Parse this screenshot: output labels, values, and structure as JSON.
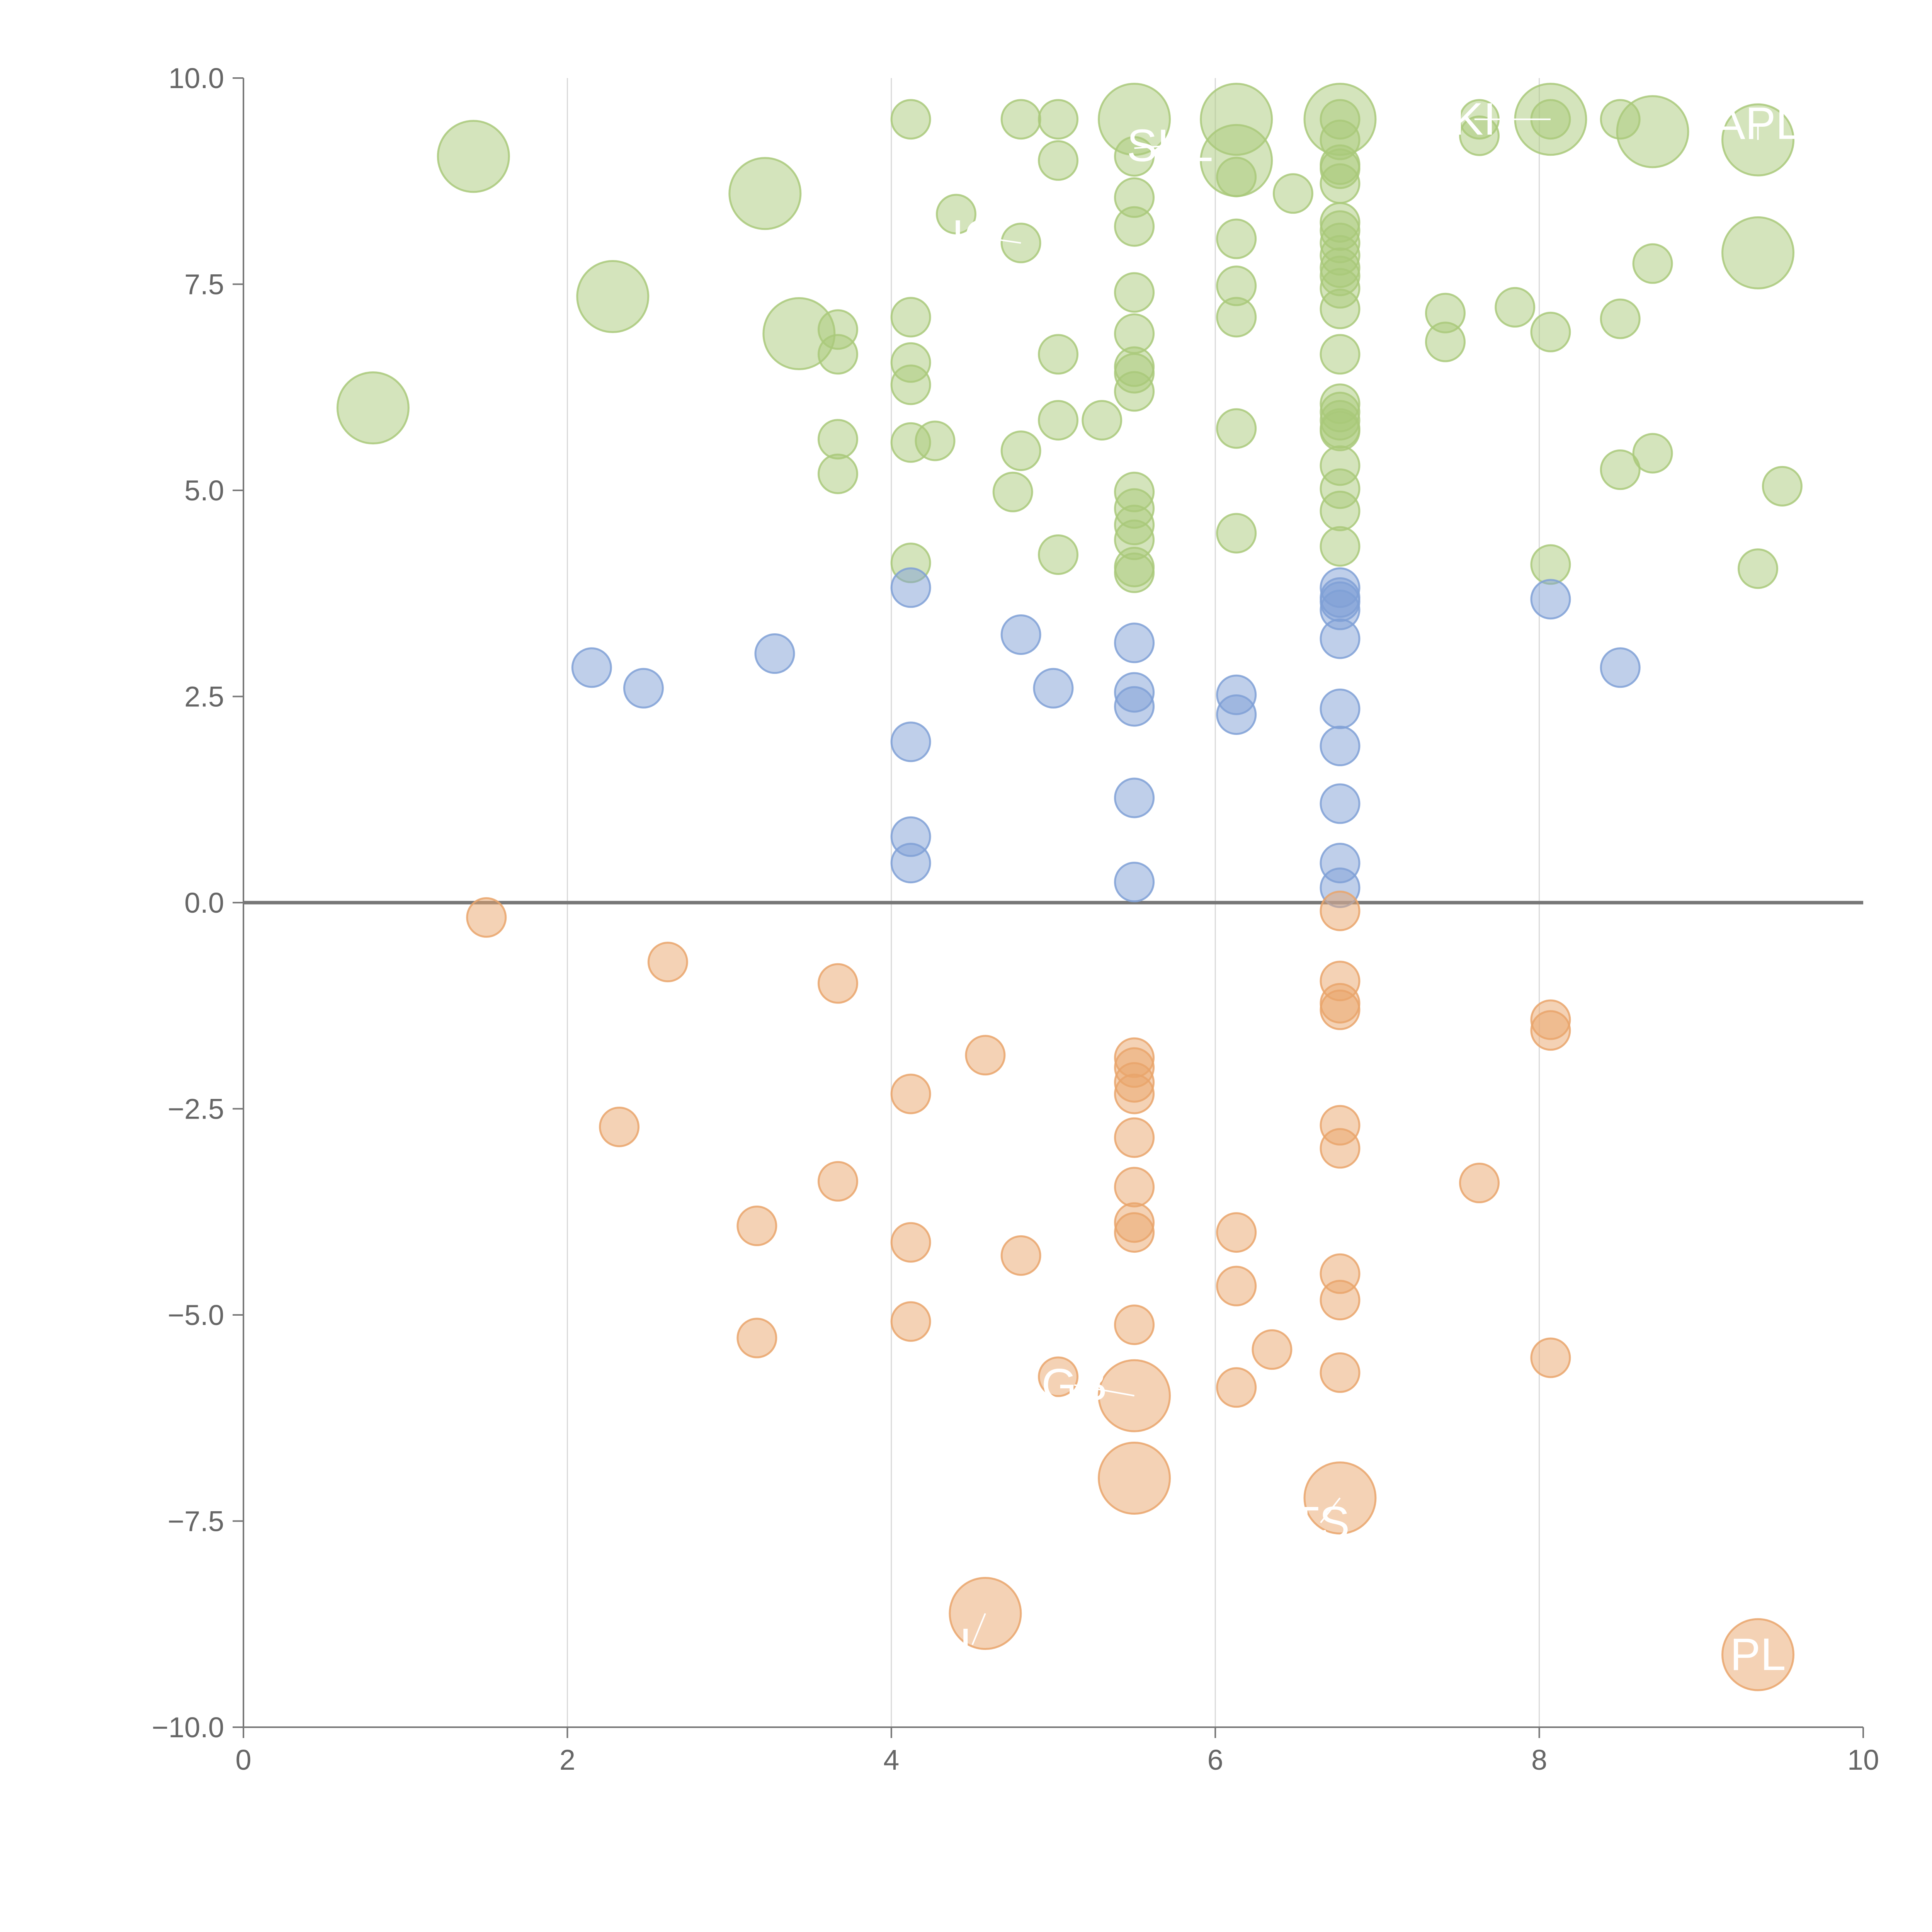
{
  "chart_data": {
    "type": "scatter",
    "title": "",
    "xlabel": "",
    "ylabel": "",
    "xlim": [
      0,
      10
    ],
    "ylim": [
      -10,
      10
    ],
    "xticks": [
      0,
      2,
      4,
      6,
      8,
      10
    ],
    "yticks": [
      -10,
      -7.5,
      -5,
      -2.5,
      0,
      2.5,
      5,
      7.5,
      10
    ],
    "x_tick_labels": [
      "0",
      "2",
      "4",
      "6",
      "8",
      "10"
    ],
    "y_tick_labels": [
      "−10.0",
      "−7.5",
      "−5.0",
      "−2.5",
      "0.0",
      "2.5",
      "5.0",
      "7.5",
      "10.0"
    ],
    "grid": "vertical",
    "zero_line": true,
    "colors": {
      "high": "#a9c97a",
      "mid": "#7fa0d6",
      "low": "#e9a56b"
    },
    "series": [
      {
        "key": "high",
        "points": [
          {
            "x": 0.8,
            "y": 6.0,
            "size": "large"
          },
          {
            "x": 1.42,
            "y": 9.05,
            "size": "large"
          },
          {
            "x": 2.28,
            "y": 7.35,
            "size": "large"
          },
          {
            "x": 3.22,
            "y": 8.6,
            "size": "large"
          },
          {
            "x": 3.43,
            "y": 6.9,
            "size": "large"
          },
          {
            "x": 3.67,
            "y": 6.95
          },
          {
            "x": 3.67,
            "y": 6.65
          },
          {
            "x": 3.67,
            "y": 5.62
          },
          {
            "x": 3.67,
            "y": 5.2
          },
          {
            "x": 4.12,
            "y": 9.5
          },
          {
            "x": 4.12,
            "y": 7.1
          },
          {
            "x": 4.12,
            "y": 6.55
          },
          {
            "x": 4.12,
            "y": 6.28
          },
          {
            "x": 4.12,
            "y": 5.58
          },
          {
            "x": 4.12,
            "y": 4.12
          },
          {
            "x": 4.27,
            "y": 5.6
          },
          {
            "x": 4.4,
            "y": 8.35
          },
          {
            "x": 4.75,
            "y": 4.98
          },
          {
            "x": 4.8,
            "y": 9.5
          },
          {
            "x": 4.8,
            "y": 8.0
          },
          {
            "x": 4.8,
            "y": 5.48
          },
          {
            "x": 5.03,
            "y": 9.5
          },
          {
            "x": 5.03,
            "y": 9.0
          },
          {
            "x": 5.03,
            "y": 6.65
          },
          {
            "x": 5.03,
            "y": 5.85
          },
          {
            "x": 5.03,
            "y": 4.22
          },
          {
            "x": 5.3,
            "y": 5.85
          },
          {
            "x": 5.5,
            "y": 9.5,
            "size": "large"
          },
          {
            "x": 5.5,
            "y": 9.05
          },
          {
            "x": 5.5,
            "y": 8.55
          },
          {
            "x": 5.5,
            "y": 8.2
          },
          {
            "x": 5.5,
            "y": 7.4
          },
          {
            "x": 5.5,
            "y": 6.9
          },
          {
            "x": 5.5,
            "y": 6.5
          },
          {
            "x": 5.5,
            "y": 6.42
          },
          {
            "x": 5.5,
            "y": 6.2
          },
          {
            "x": 5.5,
            "y": 4.98
          },
          {
            "x": 5.5,
            "y": 4.78
          },
          {
            "x": 5.5,
            "y": 4.58
          },
          {
            "x": 5.5,
            "y": 4.4
          },
          {
            "x": 5.5,
            "y": 4.07
          },
          {
            "x": 5.5,
            "y": 4.0
          },
          {
            "x": 6.13,
            "y": 9.5,
            "size": "large"
          },
          {
            "x": 6.13,
            "y": 9.0,
            "size": "large"
          },
          {
            "x": 6.13,
            "y": 8.8
          },
          {
            "x": 6.13,
            "y": 8.05
          },
          {
            "x": 6.13,
            "y": 7.48
          },
          {
            "x": 6.13,
            "y": 7.1
          },
          {
            "x": 6.13,
            "y": 5.75
          },
          {
            "x": 6.13,
            "y": 4.48
          },
          {
            "x": 6.48,
            "y": 8.6
          },
          {
            "x": 6.77,
            "y": 9.5,
            "size": "large"
          },
          {
            "x": 6.77,
            "y": 9.5
          },
          {
            "x": 6.77,
            "y": 9.25
          },
          {
            "x": 6.77,
            "y": 8.95
          },
          {
            "x": 6.77,
            "y": 8.9
          },
          {
            "x": 6.77,
            "y": 8.72
          },
          {
            "x": 6.77,
            "y": 8.25
          },
          {
            "x": 6.77,
            "y": 8.15
          },
          {
            "x": 6.77,
            "y": 8.0
          },
          {
            "x": 6.77,
            "y": 7.85
          },
          {
            "x": 6.77,
            "y": 7.7
          },
          {
            "x": 6.77,
            "y": 7.6
          },
          {
            "x": 6.77,
            "y": 7.45
          },
          {
            "x": 6.77,
            "y": 7.2
          },
          {
            "x": 6.77,
            "y": 6.65
          },
          {
            "x": 6.77,
            "y": 6.05
          },
          {
            "x": 6.77,
            "y": 5.95
          },
          {
            "x": 6.77,
            "y": 5.85
          },
          {
            "x": 6.77,
            "y": 5.75
          },
          {
            "x": 6.77,
            "y": 5.72
          },
          {
            "x": 6.77,
            "y": 5.3
          },
          {
            "x": 6.77,
            "y": 5.02
          },
          {
            "x": 6.77,
            "y": 4.75
          },
          {
            "x": 6.77,
            "y": 4.32
          },
          {
            "x": 7.42,
            "y": 7.15
          },
          {
            "x": 7.42,
            "y": 6.8
          },
          {
            "x": 7.63,
            "y": 9.5
          },
          {
            "x": 7.63,
            "y": 9.3
          },
          {
            "x": 7.85,
            "y": 7.22
          },
          {
            "x": 8.07,
            "y": 9.5,
            "size": "large"
          },
          {
            "x": 8.07,
            "y": 9.5
          },
          {
            "x": 8.07,
            "y": 6.92
          },
          {
            "x": 8.07,
            "y": 4.1
          },
          {
            "x": 8.5,
            "y": 9.5
          },
          {
            "x": 8.5,
            "y": 7.08
          },
          {
            "x": 8.5,
            "y": 5.25
          },
          {
            "x": 8.7,
            "y": 9.35,
            "size": "large"
          },
          {
            "x": 8.7,
            "y": 7.75
          },
          {
            "x": 8.7,
            "y": 5.45
          },
          {
            "x": 9.35,
            "y": 9.25,
            "size": "large"
          },
          {
            "x": 9.35,
            "y": 7.88,
            "size": "large"
          },
          {
            "x": 9.35,
            "y": 4.05
          },
          {
            "x": 9.5,
            "y": 5.05
          }
        ]
      },
      {
        "key": "mid",
        "points": [
          {
            "x": 2.15,
            "y": 2.85
          },
          {
            "x": 2.47,
            "y": 2.6
          },
          {
            "x": 3.28,
            "y": 3.02
          },
          {
            "x": 4.12,
            "y": 3.82
          },
          {
            "x": 4.12,
            "y": 1.95
          },
          {
            "x": 4.12,
            "y": 0.8
          },
          {
            "x": 4.12,
            "y": 0.48
          },
          {
            "x": 4.8,
            "y": 3.25
          },
          {
            "x": 5.0,
            "y": 2.6
          },
          {
            "x": 5.5,
            "y": 3.15
          },
          {
            "x": 5.5,
            "y": 2.55
          },
          {
            "x": 5.5,
            "y": 2.38
          },
          {
            "x": 5.5,
            "y": 1.27
          },
          {
            "x": 5.5,
            "y": 0.25
          },
          {
            "x": 6.13,
            "y": 2.52
          },
          {
            "x": 6.13,
            "y": 2.28
          },
          {
            "x": 6.77,
            "y": 3.82
          },
          {
            "x": 6.77,
            "y": 3.7
          },
          {
            "x": 6.77,
            "y": 3.65
          },
          {
            "x": 6.77,
            "y": 3.55
          },
          {
            "x": 6.77,
            "y": 3.2
          },
          {
            "x": 6.77,
            "y": 2.35
          },
          {
            "x": 6.77,
            "y": 1.9
          },
          {
            "x": 6.77,
            "y": 1.2
          },
          {
            "x": 6.77,
            "y": 0.48
          },
          {
            "x": 6.77,
            "y": 0.18
          },
          {
            "x": 8.07,
            "y": 3.68
          },
          {
            "x": 8.5,
            "y": 2.85
          }
        ]
      },
      {
        "key": "low",
        "points": [
          {
            "x": 1.5,
            "y": -0.18
          },
          {
            "x": 2.32,
            "y": -2.72
          },
          {
            "x": 2.62,
            "y": -0.72
          },
          {
            "x": 3.17,
            "y": -3.92
          },
          {
            "x": 3.17,
            "y": -5.28
          },
          {
            "x": 3.67,
            "y": -0.98
          },
          {
            "x": 3.67,
            "y": -3.38
          },
          {
            "x": 4.12,
            "y": -2.32
          },
          {
            "x": 4.12,
            "y": -4.12
          },
          {
            "x": 4.12,
            "y": -5.08
          },
          {
            "x": 4.58,
            "y": -1.85
          },
          {
            "x": 4.58,
            "y": -8.62,
            "size": "large"
          },
          {
            "x": 4.8,
            "y": -4.28
          },
          {
            "x": 5.03,
            "y": -5.75
          },
          {
            "x": 5.5,
            "y": -1.88
          },
          {
            "x": 5.5,
            "y": -2.0
          },
          {
            "x": 5.5,
            "y": -2.18
          },
          {
            "x": 5.5,
            "y": -2.32
          },
          {
            "x": 5.5,
            "y": -2.85
          },
          {
            "x": 5.5,
            "y": -3.45
          },
          {
            "x": 5.5,
            "y": -3.88
          },
          {
            "x": 5.5,
            "y": -4.0
          },
          {
            "x": 5.5,
            "y": -5.12
          },
          {
            "x": 5.5,
            "y": -5.98,
            "size": "large"
          },
          {
            "x": 5.5,
            "y": -6.98,
            "size": "large"
          },
          {
            "x": 6.13,
            "y": -4.0
          },
          {
            "x": 6.13,
            "y": -4.65
          },
          {
            "x": 6.13,
            "y": -5.88
          },
          {
            "x": 6.35,
            "y": -5.42
          },
          {
            "x": 6.77,
            "y": -0.1
          },
          {
            "x": 6.77,
            "y": -0.95
          },
          {
            "x": 6.77,
            "y": -1.22
          },
          {
            "x": 6.77,
            "y": -1.3
          },
          {
            "x": 6.77,
            "y": -2.7
          },
          {
            "x": 6.77,
            "y": -2.98
          },
          {
            "x": 6.77,
            "y": -4.5
          },
          {
            "x": 6.77,
            "y": -4.82
          },
          {
            "x": 6.77,
            "y": -5.7
          },
          {
            "x": 6.77,
            "y": -7.22,
            "size": "large"
          },
          {
            "x": 7.63,
            "y": -3.4
          },
          {
            "x": 8.07,
            "y": -1.42
          },
          {
            "x": 8.07,
            "y": -1.55
          },
          {
            "x": 8.07,
            "y": -5.52
          },
          {
            "x": 9.35,
            "y": -9.12,
            "size": "large"
          }
        ]
      }
    ],
    "annotations": [
      {
        "text": "SKL",
        "x": 5.5,
        "y": 9.15,
        "tx": 5.72,
        "ty": 9.18
      },
      {
        "text": "KI",
        "x": 8.07,
        "y": 9.5,
        "tx": 7.6,
        "ty": 9.5
      },
      {
        "text": "APL",
        "x": 9.35,
        "y": 9.25,
        "tx": 9.35,
        "ty": 9.45
      },
      {
        "text": "IO",
        "x": 4.8,
        "y": 8.0,
        "tx": 4.52,
        "ty": 8.08
      },
      {
        "text": "GB",
        "x": 5.5,
        "y": -5.98,
        "tx": 5.13,
        "ty": -5.85
      },
      {
        "text": "TS",
        "x": 6.77,
        "y": -7.22,
        "tx": 6.65,
        "ty": -7.52
      },
      {
        "text": "L",
        "x": 4.58,
        "y": -8.62,
        "tx": 4.5,
        "ty": -9.0
      },
      {
        "text": "PL",
        "x": 9.35,
        "y": -9.12,
        "tx": 9.35,
        "ty": -9.12
      }
    ]
  }
}
